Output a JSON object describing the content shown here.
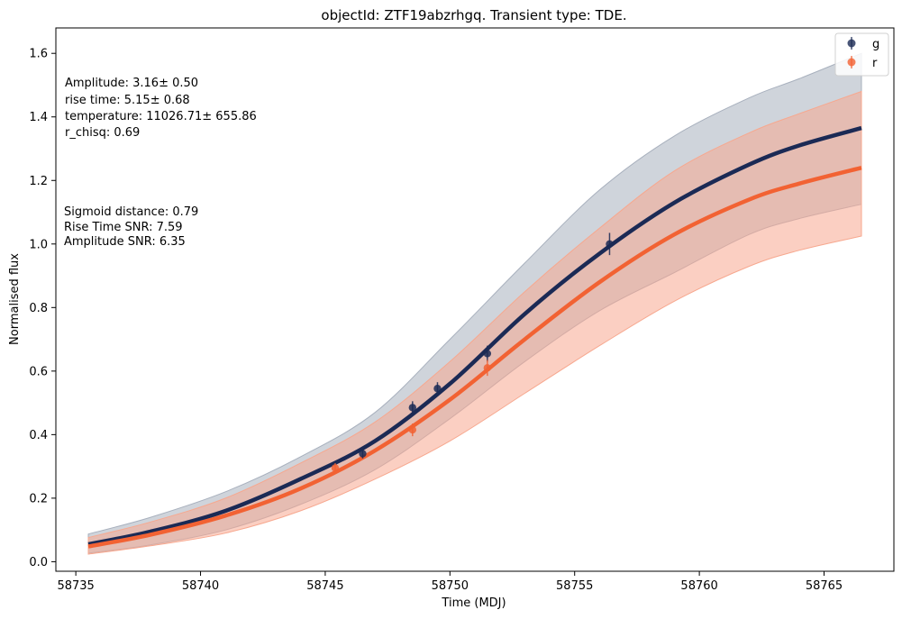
{
  "chart_data": {
    "type": "line",
    "title": "objectId: ZTF19abzrhgq. Transient type: TDE.",
    "xlabel": "Time (MDJ)",
    "ylabel": "Normalised flux",
    "xlim": [
      58734.2,
      58767.8
    ],
    "ylim": [
      -0.03,
      1.68
    ],
    "x_ticks": [
      58735,
      58740,
      58745,
      58750,
      58755,
      58760,
      58765
    ],
    "y_ticks": [
      0.0,
      0.2,
      0.4,
      0.6,
      0.8,
      1.0,
      1.2,
      1.4,
      1.6
    ],
    "legend_position": "top-right",
    "grid": false,
    "annotations": {
      "amplitude": "Amplitude: 3.16± 0.50",
      "rise_time": "rise time: 5.15± 0.68",
      "temperature": "temperature: 11026.71± 655.86",
      "r_chisq": "r_chisq: 0.69",
      "sigmoid_distance": "Sigmoid distance: 0.79",
      "rise_time_snr": "Rise Time SNR: 7.59",
      "amplitude_snr": "Amplitude SNR: 6.35"
    },
    "series": [
      {
        "name": "g",
        "color": "#1b2a55",
        "band_color": "#a8b0bd",
        "curve_x": [
          58735.5,
          58738,
          58741,
          58744,
          58747,
          58750,
          58753,
          58756,
          58759,
          58762,
          58764,
          58766.5
        ],
        "curve_y": [
          0.055,
          0.095,
          0.16,
          0.26,
          0.38,
          0.56,
          0.78,
          0.97,
          1.13,
          1.25,
          1.31,
          1.365
        ],
        "band_upper": [
          0.087,
          0.14,
          0.22,
          0.33,
          0.47,
          0.7,
          0.94,
          1.17,
          1.34,
          1.46,
          1.52,
          1.6
        ],
        "band_lower": [
          0.027,
          0.053,
          0.1,
          0.18,
          0.29,
          0.45,
          0.63,
          0.79,
          0.91,
          1.03,
          1.08,
          1.125
        ],
        "points_x": [
          58746.5,
          58748.5,
          58749.5,
          58751.5,
          58756.4
        ],
        "points_y": [
          0.34,
          0.485,
          0.545,
          0.655,
          1.0
        ],
        "errors": [
          0.015,
          0.02,
          0.02,
          0.025,
          0.035
        ]
      },
      {
        "name": "r",
        "color": "#f26233",
        "band_color": "#f7a88f",
        "curve_x": [
          58735.5,
          58738,
          58741,
          58744,
          58747,
          58750,
          58753,
          58756,
          58759,
          58762,
          58764,
          58766.5
        ],
        "curve_y": [
          0.048,
          0.085,
          0.145,
          0.23,
          0.35,
          0.51,
          0.7,
          0.88,
          1.03,
          1.14,
          1.19,
          1.24
        ],
        "band_upper": [
          0.076,
          0.125,
          0.2,
          0.31,
          0.44,
          0.63,
          0.85,
          1.05,
          1.23,
          1.35,
          1.41,
          1.48
        ],
        "band_lower": [
          0.024,
          0.05,
          0.09,
          0.16,
          0.26,
          0.38,
          0.53,
          0.68,
          0.82,
          0.93,
          0.98,
          1.025
        ],
        "points_x": [
          58745.4,
          58748.5,
          58751.5
        ],
        "points_y": [
          0.295,
          0.415,
          0.61
        ],
        "errors": [
          0.015,
          0.02,
          0.025
        ]
      }
    ]
  }
}
